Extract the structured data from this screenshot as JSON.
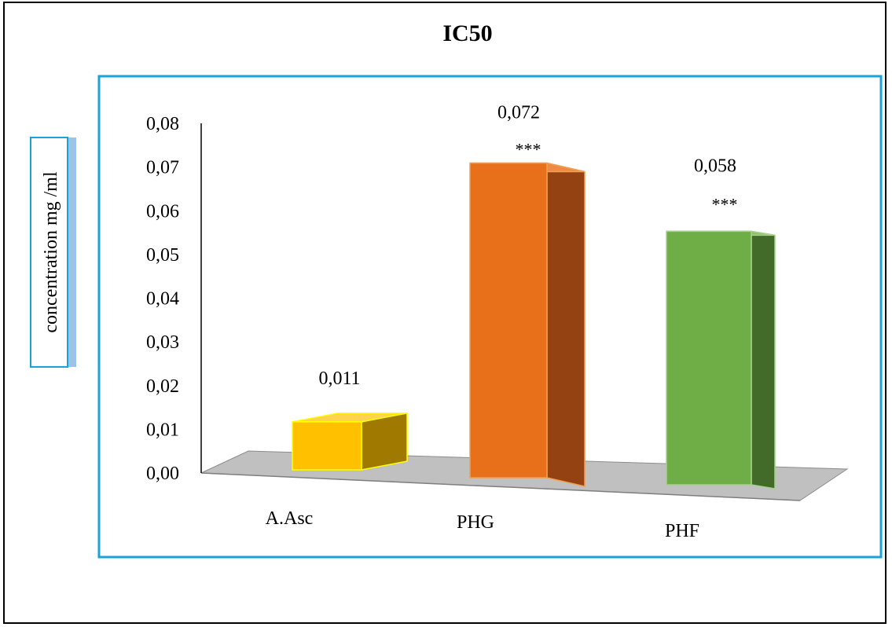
{
  "chart_data": {
    "type": "bar",
    "title": "IC50",
    "ylabel": "concentration mg /ml",
    "xlabel": "",
    "categories": [
      "A.Asc",
      "PHG",
      "PHF"
    ],
    "values": [
      0.011,
      0.072,
      0.058
    ],
    "value_labels": [
      "0,011",
      "0,072",
      "0,058"
    ],
    "significance": [
      "",
      "***",
      "***"
    ],
    "ylim": [
      0,
      0.08
    ],
    "yticks": [
      "0,00",
      "0,01",
      "0,02",
      "0,03",
      "0,04",
      "0,05",
      "0,06",
      "0,07",
      "0,08"
    ],
    "three_d": true,
    "grid": false,
    "legend": "none",
    "colors": {
      "front": [
        "#FFC000",
        "#E8701A",
        "#6FAE47"
      ],
      "side": [
        "#A07A00",
        "#944212",
        "#426A28"
      ],
      "top": [
        "#FFD34D",
        "#EE8A44",
        "#8CC26A"
      ],
      "edge": [
        "#FFFF00",
        "#F0A050",
        "#A8D08D"
      ],
      "floor": "#C0C0C0",
      "plot_border": "#1AA3D6"
    }
  }
}
